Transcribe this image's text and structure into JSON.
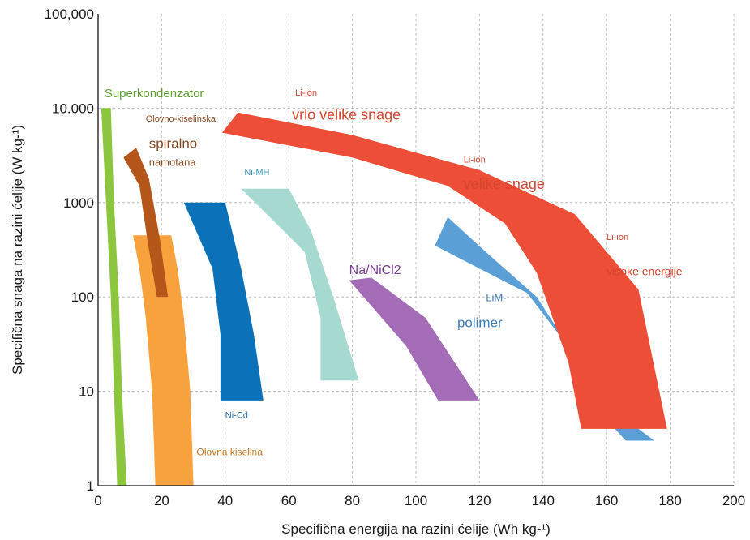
{
  "chart_data": {
    "type": "area",
    "xlabel": "Specifična energija na razini ćelije (Wh kg-¹)",
    "ylabel": "Specifična snaga na razini ćelije (W kg-¹)",
    "xlim": [
      0,
      200
    ],
    "ylim": [
      1,
      100000
    ],
    "y_scale": "log",
    "grid": true,
    "x_ticks": [
      "0",
      "20",
      "40",
      "60",
      "80",
      "100",
      "120",
      "140",
      "160",
      "180",
      "200"
    ],
    "y_ticks": [
      {
        "value": 1,
        "label": "1"
      },
      {
        "value": 10,
        "label": "10"
      },
      {
        "value": 100,
        "label": "100"
      },
      {
        "value": 1000,
        "label": "1000"
      },
      {
        "value": 10000,
        "label": "10.000"
      },
      {
        "value": 100000,
        "label": "100,000"
      }
    ],
    "series": [
      {
        "name": "Superkondenzator",
        "color": "#8cc63f",
        "polygon": [
          [
            1,
            10000
          ],
          [
            4,
            10000
          ],
          [
            5,
            1000
          ],
          [
            6.5,
            100
          ],
          [
            7.5,
            10
          ],
          [
            9,
            1
          ],
          [
            6,
            1
          ],
          [
            5,
            10
          ],
          [
            4,
            100
          ],
          [
            2.5,
            1000
          ],
          [
            1,
            10000
          ]
        ]
      },
      {
        "name": "Olovna kiselina",
        "color": "#f7a23c",
        "polygon": [
          [
            11,
            450
          ],
          [
            23,
            450
          ],
          [
            25,
            200
          ],
          [
            27,
            60
          ],
          [
            29,
            10
          ],
          [
            30,
            1
          ],
          [
            18,
            1
          ],
          [
            17,
            10
          ],
          [
            15,
            60
          ],
          [
            13,
            200
          ],
          [
            11,
            450
          ]
        ]
      },
      {
        "name": "Olovno-kiselinska spiralno namotana",
        "color": "#b5561b",
        "polygon": [
          [
            8,
            3000
          ],
          [
            12,
            3800
          ],
          [
            16,
            1800
          ],
          [
            19.5,
            400
          ],
          [
            22,
            100
          ],
          [
            18.5,
            100
          ],
          [
            15.5,
            400
          ],
          [
            13,
            1500
          ],
          [
            8,
            3000
          ]
        ]
      },
      {
        "name": "Ni-Cd",
        "color": "#0b72b9",
        "polygon": [
          [
            27,
            1000
          ],
          [
            40,
            1000
          ],
          [
            45,
            200
          ],
          [
            49,
            40
          ],
          [
            52,
            8
          ],
          [
            38.5,
            8
          ],
          [
            38.5,
            40
          ],
          [
            36,
            200
          ],
          [
            27,
            1000
          ]
        ]
      },
      {
        "name": "Ni-MH",
        "color": "#a6d9d0",
        "polygon": [
          [
            45,
            1400
          ],
          [
            60,
            1400
          ],
          [
            67,
            500
          ],
          [
            74,
            100
          ],
          [
            82,
            13
          ],
          [
            70,
            13
          ],
          [
            70,
            60
          ],
          [
            65,
            300
          ],
          [
            45,
            1400
          ]
        ]
      },
      {
        "name": "Na/NiCl2",
        "color": "#a46bb7",
        "polygon": [
          [
            79,
            150
          ],
          [
            86,
            160
          ],
          [
            103,
            60
          ],
          [
            120,
            8
          ],
          [
            107,
            8
          ],
          [
            97,
            30
          ],
          [
            79,
            150
          ]
        ]
      },
      {
        "name": "LiM-polimer",
        "color": "#5a9fd6",
        "polygon": [
          [
            106,
            350
          ],
          [
            110,
            700
          ],
          [
            122,
            300
          ],
          [
            138,
            100
          ],
          [
            148,
            30
          ],
          [
            158,
            10
          ],
          [
            170,
            4
          ],
          [
            175,
            3
          ],
          [
            166,
            3
          ],
          [
            160,
            5
          ],
          [
            145,
            40
          ],
          [
            135,
            110
          ],
          [
            120,
            200
          ],
          [
            106,
            350
          ]
        ]
      },
      {
        "name": "Li-ion",
        "color": "#ec4e37",
        "polygon": [
          [
            39,
            5500
          ],
          [
            44,
            9000
          ],
          [
            80,
            5200
          ],
          [
            120,
            2200
          ],
          [
            150,
            750
          ],
          [
            170,
            120
          ],
          [
            179,
            4
          ],
          [
            152,
            4
          ],
          [
            148,
            20
          ],
          [
            138,
            180
          ],
          [
            128,
            600
          ],
          [
            110,
            1500
          ],
          [
            80,
            3000
          ],
          [
            39,
            5500
          ]
        ]
      }
    ],
    "annotations": [
      {
        "text": "Superkondenzator",
        "color": "#5e9e2d",
        "x": 2,
        "y": 13000,
        "size": 15
      },
      {
        "text": "Olovno-kiselinska",
        "color": "#8a4a22",
        "x": 15,
        "y": 7200,
        "size": 11
      },
      {
        "text": "spiralno",
        "color": "#8a4a22",
        "x": 16,
        "y": 3800,
        "size": 17
      },
      {
        "text": "namotana",
        "color": "#8a4a22",
        "x": 16,
        "y": 2450,
        "size": 13
      },
      {
        "text": "Ni-MH",
        "color": "#3f97b8",
        "x": 46,
        "y": 1950,
        "size": 11
      },
      {
        "text": "Li-ion",
        "color": "#d4452f",
        "x": 62,
        "y": 13600,
        "size": 11
      },
      {
        "text": "vrlo velike snage",
        "color": "#d4452f",
        "x": 61,
        "y": 7600,
        "size": 18
      },
      {
        "text": "Li-ion",
        "color": "#d4452f",
        "x": 115,
        "y": 2650,
        "size": 11
      },
      {
        "text": "velike snage",
        "color": "#d4452f",
        "x": 115,
        "y": 1400,
        "size": 18
      },
      {
        "text": "Li-ion",
        "color": "#d4452f",
        "x": 160,
        "y": 400,
        "size": 11
      },
      {
        "text": "visoke energije",
        "color": "#d4452f",
        "x": 160,
        "y": 170,
        "size": 14
      },
      {
        "text": "Na/NiCl2",
        "color": "#7b3e8f",
        "x": 79,
        "y": 175,
        "size": 16
      },
      {
        "text": "LiM-",
        "color": "#3f7fb8",
        "x": 122,
        "y": 90,
        "size": 13
      },
      {
        "text": "polimer",
        "color": "#3f7fb8",
        "x": 113,
        "y": 48,
        "size": 17
      },
      {
        "text": "Ni-Cd",
        "color": "#2e6fa8",
        "x": 40,
        "y": 5.2,
        "size": 11
      },
      {
        "text": "Olovna kiselina",
        "color": "#c47a26",
        "x": 31,
        "y": 2.1,
        "size": 12
      }
    ]
  }
}
